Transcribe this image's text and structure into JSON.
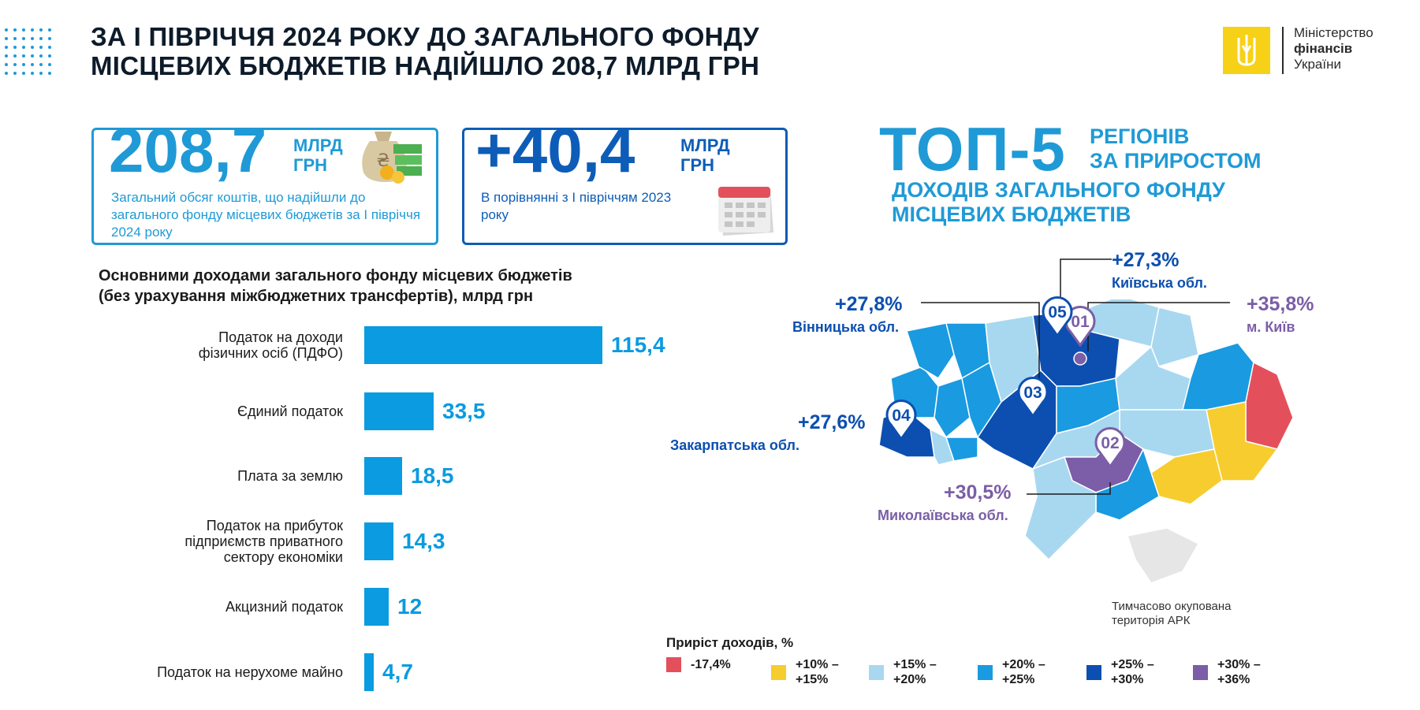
{
  "header": {
    "title_line1": "ЗА І ПІВРІЧЧЯ 2024 РОКУ ДО ЗАГАЛЬНОГО ФОНДУ",
    "title_line2": "МІСЦЕВИХ БЮДЖЕТІВ НАДІЙШЛО 208,7 МЛРД ГРН",
    "logo": {
      "line1": "Міністерство",
      "line2": "фінансів",
      "line3": "України",
      "color": "#f7d117"
    }
  },
  "cards": [
    {
      "number": "208,7",
      "unit_line1": "МЛРД",
      "unit_line2": "ГРН",
      "text": "Загальний обсяг коштів, що надійшли до загального фонду місцевих бюджетів за І півріччя 2024 року",
      "icon": "money-bag-icon",
      "color": "#1f9ad6"
    },
    {
      "number": "+40,4",
      "unit_line1": "МЛРД",
      "unit_line2": "ГРН",
      "text": "В порівнянні з І півріччям 2023 року",
      "icon": "calendar-icon",
      "color": "#0d5db8"
    }
  ],
  "top5": {
    "big": "ТОП-5",
    "sub_line1": "РЕГІОНІВ",
    "sub_line2": "ЗА ПРИРОСТОМ",
    "sub_line3": "ДОХОДІВ ЗАГАЛЬНОГО ФОНДУ",
    "sub_line4": "МІСЦЕВИХ БЮДЖЕТІВ"
  },
  "chart_data": {
    "type": "bar",
    "orientation": "horizontal",
    "title": "Основними доходами загального фонду місцевих бюджетів (без урахування міжбюджетних трансфертів), млрд грн",
    "title_line1": "Основними доходами загального фонду місцевих бюджетів",
    "title_line2": "(без урахування міжбюджетних трансфертів), млрд грн",
    "categories": [
      "Податок на доходи фізичних осіб (ПДФО)",
      "Єдиний податок",
      "Плата за землю",
      "Податок на прибуток підприємств приватного сектору економіки",
      "Акцизний податок",
      "Податок на нерухоме майно"
    ],
    "category_lines": [
      "Податок на доходи\nфізичних осіб (ПДФО)",
      "Єдиний податок",
      "Плата за землю",
      "Податок на прибуток\nпідприємств приватного\nсектору економіки",
      "Акцизний податок",
      "Податок на нерухоме майно"
    ],
    "values": [
      115.4,
      33.5,
      18.5,
      14.3,
      12,
      4.7
    ],
    "value_labels": [
      "115,4",
      "33,5",
      "18,5",
      "14,3",
      "12",
      "4,7"
    ],
    "bar_color": "#0a9be0"
  },
  "regions": [
    {
      "rank": "01",
      "pct": "+35,8%",
      "name": "м. Київ",
      "color": "#7b5ea7"
    },
    {
      "rank": "02",
      "pct": "+30,5%",
      "name": "Миколаївська обл.",
      "color": "#7b5ea7"
    },
    {
      "rank": "03",
      "pct": "+27,8%",
      "name": "Вінницька обл.",
      "color": "#0d4fb0"
    },
    {
      "rank": "04",
      "pct": "+27,6%",
      "name": "Закарпатська обл.",
      "color": "#0d4fb0"
    },
    {
      "rank": "05",
      "pct": "+27,3%",
      "name": "Київська обл.",
      "color": "#0d4fb0"
    }
  ],
  "map_note": "Тимчасово окупована\nтериторія АРК",
  "legend": {
    "title": "Приріст доходів, %",
    "items": [
      {
        "label": "-17,4%",
        "color": "#e3505b"
      },
      {
        "label": "+10% –\n+15%",
        "color": "#f7cc2e"
      },
      {
        "label": "+15% –\n+20%",
        "color": "#a8d8f0"
      },
      {
        "label": "+20% –\n+25%",
        "color": "#1a9ae0"
      },
      {
        "label": "+25% –\n+30%",
        "color": "#0d4fb0"
      },
      {
        "label": "+30% –\n+36%",
        "color": "#7b5ea7"
      }
    ]
  }
}
